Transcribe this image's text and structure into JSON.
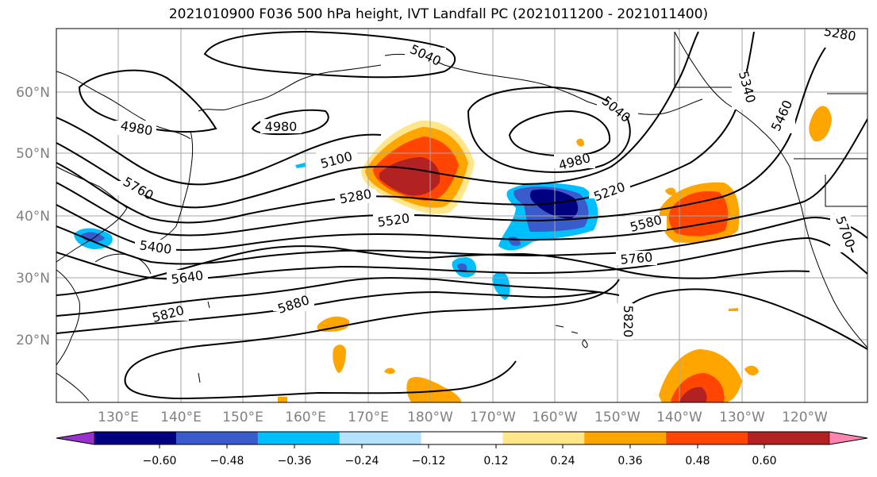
{
  "title": "2021010900 F036 500 hPa height, IVT Landfall PC (2021011200 - 2021011400)",
  "map": {
    "lat_labels": [
      "60°N",
      "50°N",
      "40°N",
      "30°N",
      "20°N"
    ],
    "lon_labels": [
      "130°E",
      "140°E",
      "150°E",
      "160°E",
      "170°E",
      "180°W",
      "170°W",
      "160°W",
      "150°W",
      "140°W",
      "130°W",
      "120°W"
    ],
    "gridlines": true,
    "contour_color": "#000000",
    "contour_labels": [
      "4980",
      "4980",
      "5040",
      "5040",
      "4980",
      "5340",
      "5460",
      "5100",
      "5760",
      "5280",
      "5220",
      "5520",
      "5580",
      "5400",
      "5760",
      "5640",
      "5700",
      "5880",
      "5820",
      "5820",
      "5280"
    ]
  },
  "colorbar": {
    "tick_labels": [
      "−0.60",
      "−0.48",
      "−0.36",
      "−0.24",
      "−0.12",
      "0.12",
      "0.24",
      "0.36",
      "0.48",
      "0.60"
    ],
    "colors": [
      "#9932CC",
      "#000080",
      "#3A5BCB",
      "#00BFFF",
      "#B2E2FF",
      "#FFFFFF",
      "#FFE68A",
      "#FFA500",
      "#FF4500",
      "#B22222",
      "#FF85B0"
    ],
    "extend": "both"
  }
}
